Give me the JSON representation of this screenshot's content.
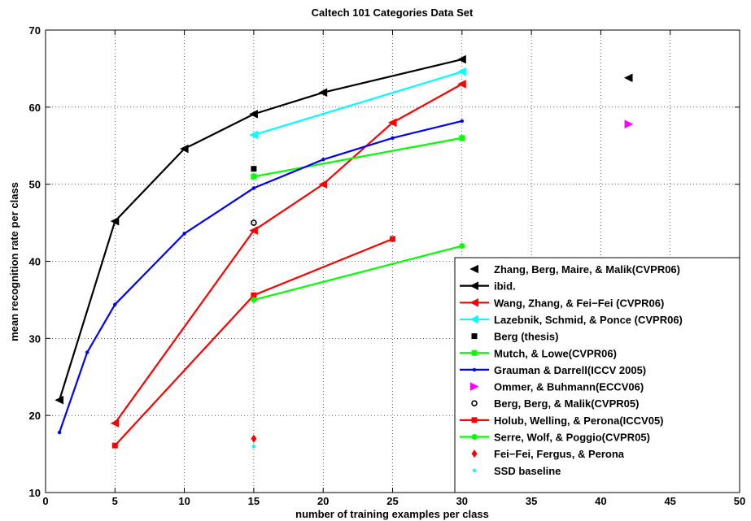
{
  "chart_data": {
    "type": "line",
    "title": "Caltech 101 Categories Data Set",
    "xlabel": "number of training examples per class",
    "ylabel": "mean recognition rate per class",
    "xlim": [
      0,
      50
    ],
    "ylim": [
      10,
      70
    ],
    "xticks": [
      0,
      5,
      10,
      15,
      20,
      25,
      30,
      35,
      40,
      45,
      50
    ],
    "yticks": [
      10,
      20,
      30,
      40,
      50,
      60,
      70
    ],
    "grid": true,
    "legend_position": "bottom-right",
    "series": [
      {
        "name": "Zhang, Berg, Maire, & Malik(CVPR06)",
        "color": "#000000",
        "marker": "triangle-left",
        "line": false,
        "x": [
          42
        ],
        "y": [
          63.8
        ]
      },
      {
        "name": "ibid.",
        "color": "#000000",
        "marker": "triangle-left",
        "line": true,
        "x": [
          1,
          5,
          10,
          15,
          20,
          30
        ],
        "y": [
          22,
          45.2,
          54.6,
          59.1,
          61.9,
          66.2
        ]
      },
      {
        "name": "Wang, Zhang, & Fei−Fei (CVPR06)",
        "color": "#ff0000",
        "marker": "triangle-left",
        "line": true,
        "x": [
          5,
          15,
          20,
          25,
          30
        ],
        "y": [
          19,
          44,
          50,
          58,
          63
        ]
      },
      {
        "name": "Lazebnik, Schmid, & Ponce (CVPR06)",
        "color": "#00ffff",
        "marker": "triangle-left",
        "line": true,
        "x": [
          15,
          30
        ],
        "y": [
          56.4,
          64.6
        ]
      },
      {
        "name": "Berg (thesis)",
        "color": "#000000",
        "marker": "square",
        "line": false,
        "x": [
          15
        ],
        "y": [
          52
        ]
      },
      {
        "name": "Mutch, & Lowe(CVPR06)",
        "color": "#00ff00",
        "marker": "square",
        "line": true,
        "x": [
          15,
          30
        ],
        "y": [
          51,
          56
        ]
      },
      {
        "name": "Grauman & Darrell(ICCV 2005)",
        "color": "#0000ff",
        "marker": "dot",
        "line": true,
        "x": [
          1,
          3,
          5,
          10,
          15,
          20,
          25,
          30
        ],
        "y": [
          17.8,
          28.2,
          34.4,
          43.6,
          49.5,
          53.2,
          56,
          58.2
        ]
      },
      {
        "name": "Ommer, & Buhmann(ECCV06)",
        "color": "#ff00ff",
        "marker": "triangle-right",
        "line": false,
        "x": [
          42
        ],
        "y": [
          57.8
        ]
      },
      {
        "name": "Berg, Berg, & Malik(CVPR05)",
        "color": "#000000",
        "marker": "circle",
        "line": false,
        "x": [
          15
        ],
        "y": [
          45
        ]
      },
      {
        "name": "Holub, Welling, & Perona(ICCV05)",
        "color": "#ff0000",
        "marker": "square",
        "line": true,
        "x": [
          5,
          15,
          25
        ],
        "y": [
          16.1,
          35.6,
          42.9
        ]
      },
      {
        "name": "Serre, Wolf, & Poggio(CVPR05)",
        "color": "#00ff00",
        "marker": "circle-filled",
        "line": true,
        "x": [
          15,
          30
        ],
        "y": [
          35,
          42
        ]
      },
      {
        "name": "Fei−Fei, Fergus, & Perona",
        "color": "#ff0000",
        "marker": "diamond",
        "line": false,
        "x": [
          15
        ],
        "y": [
          17
        ]
      },
      {
        "name": "SSD baseline",
        "color": "#00ffff",
        "marker": "dot",
        "line": false,
        "x": [
          15
        ],
        "y": [
          16
        ]
      }
    ]
  }
}
